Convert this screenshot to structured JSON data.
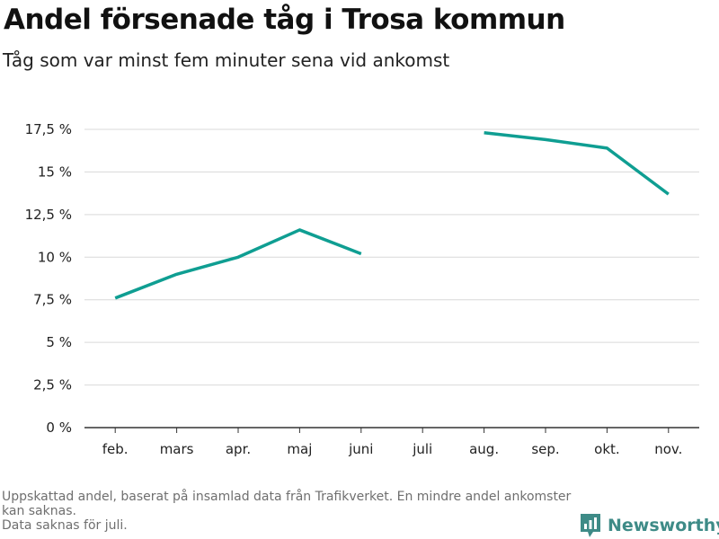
{
  "title": "Andel försenade tåg i Trosa kommun",
  "subtitle": "Tåg som var minst fem minuter sena vid ankomst",
  "chart_data": {
    "type": "line",
    "categories": [
      "feb.",
      "mars",
      "apr.",
      "maj",
      "juni",
      "juli",
      "aug.",
      "sep.",
      "okt.",
      "nov."
    ],
    "series": [
      {
        "values": [
          7.6,
          9.0,
          10.0,
          11.6,
          10.2,
          null,
          17.3,
          16.9,
          16.4,
          13.7
        ],
        "color": "#0f9e92"
      }
    ],
    "y_ticks": [
      0,
      2.5,
      5,
      7.5,
      10,
      12.5,
      15,
      17.5
    ],
    "y_tick_labels": [
      "0 %",
      "2,5 %",
      "5 %",
      "7,5 %",
      "10 %",
      "12,5 %",
      "15 %",
      "17,5 %"
    ],
    "ylim": [
      0,
      17.5
    ],
    "grid": true,
    "grid_color": "#d9d9d9"
  },
  "footnote": {
    "line1": "Uppskattad andel, baserat på insamlad data från Trafikverket. En mindre andel ankomster kan saknas.",
    "line2": "Data saknas för juli."
  },
  "brand": {
    "name": "Newsworthy",
    "icon": "newsworthy-logo-icon",
    "color": "#3e8b87"
  }
}
